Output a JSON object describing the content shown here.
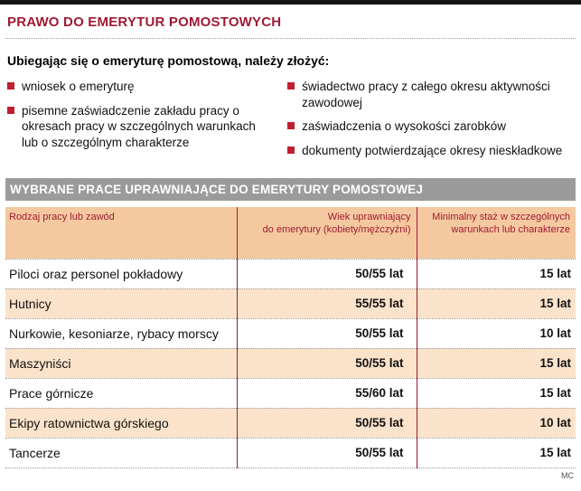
{
  "title": "PRAWO DO EMERYTUR POMOSTOWYCH",
  "intro": {
    "heading": "Ubiegając się o emeryturę pomostową, należy złożyć:",
    "left_items": [
      "wniosek o emeryturę",
      "pisemne zaświadczenie zakładu pracy o okresach pracy w szczególnych warunkach lub o szczególnym charakterze"
    ],
    "right_items": [
      "świadectwo pracy z całego okresu aktywności zawodowej",
      "zaświadczenia o wysokości zarobków",
      "dokumenty potwierdzające okresy nieskładkowe"
    ]
  },
  "table_section": {
    "header": "WYBRANE PRACE UPRAWNIAJĄCE DO EMERYTURY POMOSTOWEJ",
    "columns": {
      "job": "Rodzaj pracy lub zawód",
      "age_line1": "Wiek uprawniający",
      "age_line2": "do emerytury (kobiety/mężczyźni)",
      "staz_line1": "Minimalny staż w szczególnych",
      "staz_line2": "warunkach lub charakterze"
    },
    "rows": [
      {
        "job": "Piloci oraz personel pokładowy",
        "age": "50/55 lat",
        "seniority": "15 lat"
      },
      {
        "job": "Hutnicy",
        "age": "55/55 lat",
        "seniority": "15 lat"
      },
      {
        "job": "Nurkowie, kesoniarze, rybacy morscy",
        "age": "50/55 lat",
        "seniority": "10 lat"
      },
      {
        "job": "Maszyniści",
        "age": "50/55 lat",
        "seniority": "15 lat"
      },
      {
        "job": "Prace górnicze",
        "age": "55/60 lat",
        "seniority": "15 lat"
      },
      {
        "job": "Ekipy ratownictwa górskiego",
        "age": "50/55 lat",
        "seniority": "10 lat"
      },
      {
        "job": "Tancerze",
        "age": "50/55 lat",
        "seniority": "15 lat"
      }
    ]
  },
  "footer": {
    "credit": "MC"
  },
  "colors": {
    "accent": "#9e1b32",
    "bullet_red": "#c01f30",
    "bar_gray": "#9b9b9b",
    "header_peach": "#f5c9a0",
    "row_peach": "#fbe3cb"
  }
}
